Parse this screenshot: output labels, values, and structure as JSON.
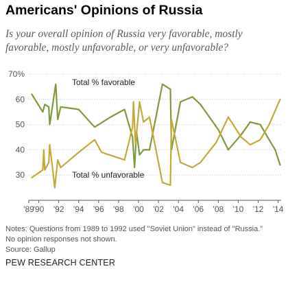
{
  "header": {
    "title": "Americans' Opinions of Russia",
    "subtitle": "Is your overall opinion of Russia very favorable, mostly favorable, mostly unfavorable, or very unfavorable?"
  },
  "footer": {
    "notes": [
      "Notes: Questions from 1989 to 1992 used \"Soviet Union\" instead of \"Russia.\"",
      "No opinion responses not shown.",
      "Source: Gallup"
    ],
    "organization": "PEW RESEARCH CENTER"
  },
  "chart_data": {
    "type": "line",
    "title": "Americans' Opinions of Russia",
    "xlabel": "",
    "ylabel": "",
    "xlim": [
      1989,
      2014.3
    ],
    "ylim": [
      20,
      70
    ],
    "y_ticks": [
      20,
      30,
      40,
      50,
      60,
      70
    ],
    "y_tick_labels": [
      "",
      "30",
      "40",
      "50",
      "60",
      "70%"
    ],
    "x_ticks": [
      1989,
      1990,
      1992,
      1994,
      1996,
      1998,
      2000,
      2002,
      2004,
      2006,
      2008,
      2010,
      2012,
      2014
    ],
    "x_tick_labels": [
      "'89",
      "'90",
      "'92",
      "'94",
      "'96",
      "'98",
      "'00",
      "'02",
      "'04",
      "'06",
      "'08",
      "'10",
      "'12",
      "'14"
    ],
    "grid": true,
    "legend": "inline labels",
    "series": [
      {
        "name": "Total % favorable",
        "color": "#7f9a3c",
        "points": [
          [
            1989.3,
            62
          ],
          [
            1990.4,
            55
          ],
          [
            1990.6,
            58
          ],
          [
            1991.0,
            57
          ],
          [
            1991.1,
            50
          ],
          [
            1991.4,
            58
          ],
          [
            1991.7,
            66
          ],
          [
            1991.9,
            52
          ],
          [
            1992.2,
            57
          ],
          [
            1994.0,
            56
          ],
          [
            1995.6,
            49
          ],
          [
            1997.2,
            53
          ],
          [
            1998.6,
            56
          ],
          [
            1999.4,
            45
          ],
          [
            1999.6,
            33
          ],
          [
            1999.8,
            47
          ],
          [
            2000.1,
            38
          ],
          [
            2000.5,
            40
          ],
          [
            2001.1,
            40
          ],
          [
            2002.4,
            66
          ],
          [
            2003.2,
            64
          ],
          [
            2003.3,
            40
          ],
          [
            2004.2,
            59
          ],
          [
            2005.4,
            61
          ],
          [
            2006.2,
            58
          ],
          [
            2008.0,
            48
          ],
          [
            2009.0,
            40
          ],
          [
            2010.3,
            46
          ],
          [
            2011.2,
            51
          ],
          [
            2012.2,
            50
          ],
          [
            2013.1,
            44
          ],
          [
            2013.7,
            40
          ],
          [
            2014.2,
            34
          ]
        ]
      },
      {
        "name": "Total % unfavorable",
        "color": "#c4a838",
        "points": [
          [
            1989.3,
            29
          ],
          [
            1990.4,
            32
          ],
          [
            1990.5,
            40
          ],
          [
            1990.6,
            32
          ],
          [
            1991.0,
            35
          ],
          [
            1991.1,
            42
          ],
          [
            1991.4,
            32
          ],
          [
            1991.6,
            25
          ],
          [
            1991.9,
            36
          ],
          [
            1992.2,
            33
          ],
          [
            1994.0,
            39
          ],
          [
            1995.6,
            44
          ],
          [
            1996.3,
            39
          ],
          [
            1998.6,
            36
          ],
          [
            1999.4,
            49
          ],
          [
            1999.5,
            59
          ],
          [
            1999.7,
            42
          ],
          [
            2000.1,
            59
          ],
          [
            2000.5,
            51
          ],
          [
            2001.1,
            53
          ],
          [
            2002.4,
            27
          ],
          [
            2003.2,
            26
          ],
          [
            2003.3,
            52
          ],
          [
            2004.2,
            35
          ],
          [
            2005.4,
            33
          ],
          [
            2006.2,
            35
          ],
          [
            2007.8,
            43
          ],
          [
            2009.0,
            53
          ],
          [
            2010.3,
            45
          ],
          [
            2011.2,
            42
          ],
          [
            2012.2,
            44
          ],
          [
            2013.1,
            50
          ],
          [
            2014.2,
            60
          ]
        ]
      }
    ],
    "annotations": [
      {
        "text": "Total % favorable",
        "series": "Total % favorable"
      },
      {
        "text": "Total % unfavorable",
        "series": "Total % unfavorable"
      }
    ]
  }
}
